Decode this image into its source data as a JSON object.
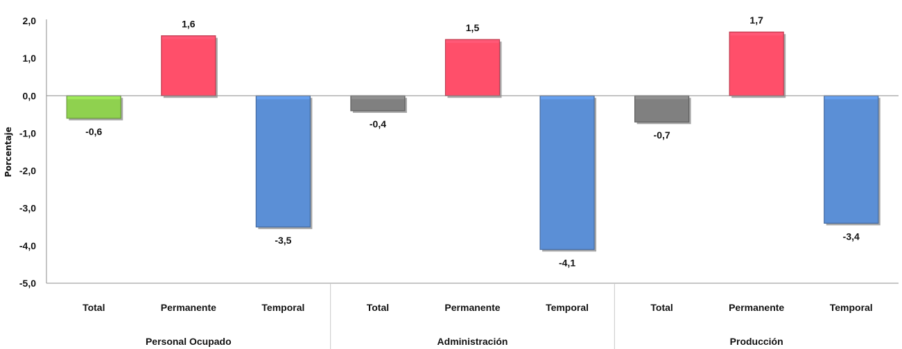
{
  "chart_data": {
    "type": "bar",
    "ylabel": "Porcentaje",
    "ylim": [
      -5.0,
      2.0
    ],
    "ytick_step": 1.0,
    "grid": false,
    "groups": [
      {
        "name": "Personal Ocupado",
        "bars": [
          {
            "category": "Total",
            "value": -0.6,
            "label": "-0,6",
            "color": "#8FD14F"
          },
          {
            "category": "Permanente",
            "value": 1.6,
            "label": "1,6",
            "color": "#FF4F6A"
          },
          {
            "category": "Temporal",
            "value": -3.5,
            "label": "-3,5",
            "color": "#5B8FD6"
          }
        ]
      },
      {
        "name": "Administración",
        "bars": [
          {
            "category": "Total",
            "value": -0.4,
            "label": "-0,4",
            "color": "#808080"
          },
          {
            "category": "Permanente",
            "value": 1.5,
            "label": "1,5",
            "color": "#FF4F6A"
          },
          {
            "category": "Temporal",
            "value": -4.1,
            "label": "-4,1",
            "color": "#5B8FD6"
          }
        ]
      },
      {
        "name": "Producción",
        "bars": [
          {
            "category": "Total",
            "value": -0.7,
            "label": "-0,7",
            "color": "#808080"
          },
          {
            "category": "Permanente",
            "value": 1.7,
            "label": "1,7",
            "color": "#FF4F6A"
          },
          {
            "category": "Temporal",
            "value": -3.4,
            "label": "-3,4",
            "color": "#5B8FD6"
          }
        ]
      }
    ]
  }
}
